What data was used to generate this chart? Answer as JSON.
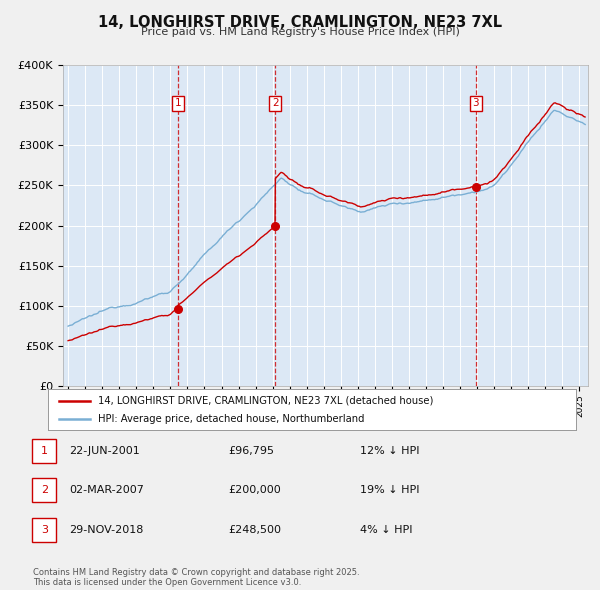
{
  "title": "14, LONGHIRST DRIVE, CRAMLINGTON, NE23 7XL",
  "subtitle": "Price paid vs. HM Land Registry's House Price Index (HPI)",
  "bg_color": "#f0f0f0",
  "plot_bg_color": "#dce8f5",
  "grid_color": "#ffffff",
  "red_color": "#cc0000",
  "blue_color": "#7aafd4",
  "sale_dates_num": [
    2001.47,
    2007.16,
    2018.91
  ],
  "sale_prices": [
    96795,
    200000,
    248500
  ],
  "sale_labels": [
    "1",
    "2",
    "3"
  ],
  "legend_entries": [
    "14, LONGHIRST DRIVE, CRAMLINGTON, NE23 7XL (detached house)",
    "HPI: Average price, detached house, Northumberland"
  ],
  "table_rows": [
    {
      "num": "1",
      "date": "22-JUN-2001",
      "price": "£96,795",
      "hpi": "12% ↓ HPI"
    },
    {
      "num": "2",
      "date": "02-MAR-2007",
      "price": "£200,000",
      "hpi": "19% ↓ HPI"
    },
    {
      "num": "3",
      "date": "29-NOV-2018",
      "price": "£248,500",
      "hpi": "4% ↓ HPI"
    }
  ],
  "footnote": "Contains HM Land Registry data © Crown copyright and database right 2025.\nThis data is licensed under the Open Government Licence v3.0.",
  "ylim": [
    0,
    400000
  ],
  "xlim_start": 1994.7,
  "xlim_end": 2025.5
}
